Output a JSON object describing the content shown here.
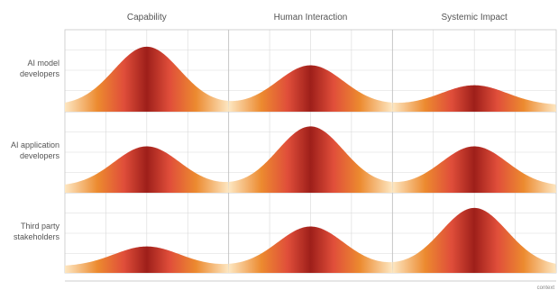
{
  "chart_data": {
    "type": "area",
    "columns": [
      "Capability",
      "Human Interaction",
      "Systemic Impact"
    ],
    "rows": [
      "AI model developers",
      "AI application developers",
      "Third party stakeholders"
    ],
    "row_labels": [
      [
        "AI model",
        "developers"
      ],
      [
        "AI application",
        "developers"
      ],
      [
        "Third party",
        "stakeholders"
      ]
    ],
    "peak_heights": [
      [
        0.88,
        0.6,
        0.3
      ],
      [
        0.6,
        0.9,
        0.6
      ],
      [
        0.3,
        0.6,
        0.88
      ]
    ],
    "x_axis_label": "context",
    "grid": true,
    "colors": {
      "peak": "#9e1f1a",
      "mid": "#e04e3a",
      "shoulder": "#ec8a2f",
      "edge": "#fde7c2",
      "grid": "#d9d9d9",
      "label": "#555555"
    }
  }
}
